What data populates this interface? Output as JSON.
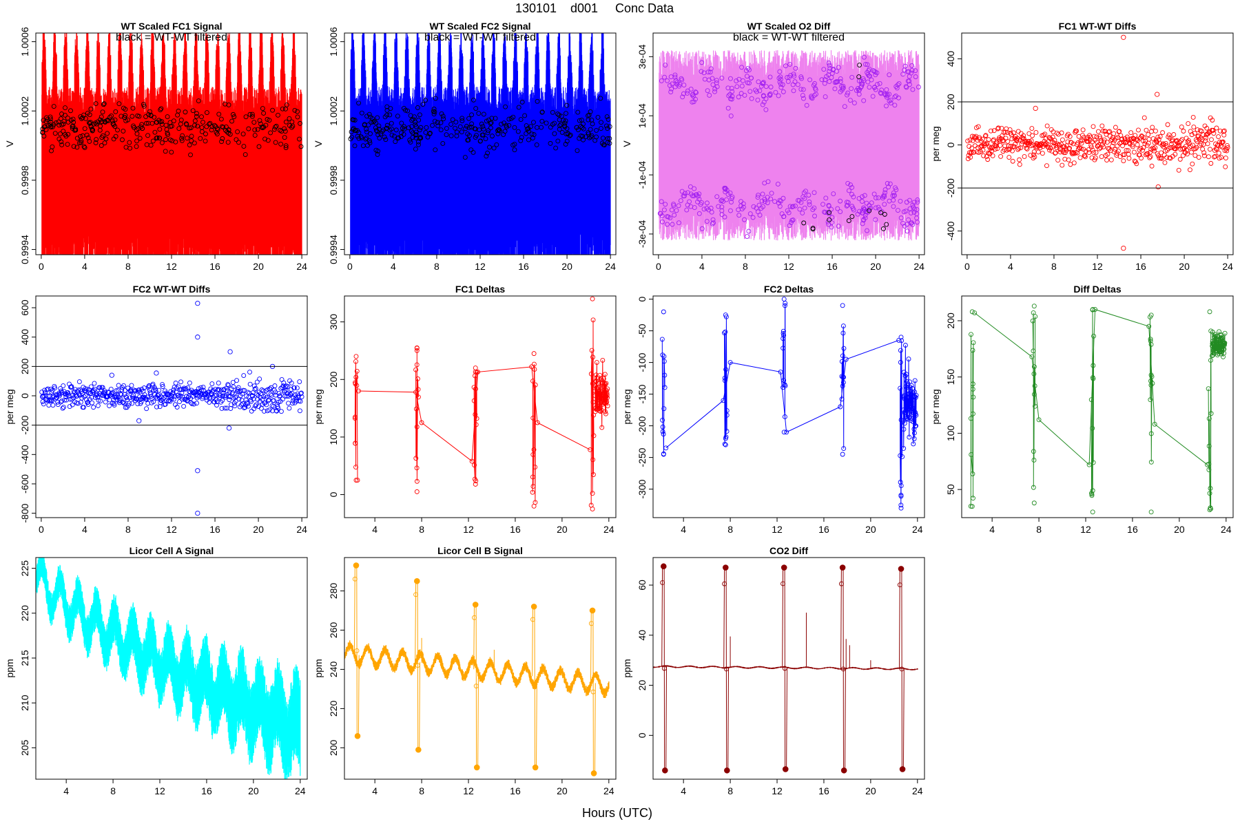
{
  "figure": {
    "title_parts": [
      "130101",
      "d001",
      "Conc Data"
    ],
    "xlabel": "Hours (UTC)"
  },
  "colors": {
    "red": "#ff0000",
    "blue": "#0000ff",
    "violet_line": "#ee82ee",
    "violet_pts": "#a020f0",
    "green": "#228b22",
    "cyan": "#00ffff",
    "orange": "#ffa500",
    "darkred": "#8b0000",
    "black": "#000000"
  },
  "chart_data": [
    {
      "id": "fc1sig",
      "type": "line",
      "title": "WT Scaled FC1 Signal",
      "subtitle": "black = WT-WT filtered",
      "xlabel": "Hours (UTC)",
      "ylabel": "V",
      "xlim": [
        -0.5,
        24.5
      ],
      "ylim": [
        0.99937,
        1.00065
      ],
      "xticks": [
        0,
        4,
        8,
        12,
        16,
        20,
        24
      ],
      "yticks": [
        0.9994,
        0.9998,
        1.0002,
        1.0006
      ],
      "yticklabels": [
        "0.9994",
        "0.9998",
        "1.0002",
        "1.0006"
      ],
      "ytick_rotate": true,
      "color": "red",
      "pts_color": "black",
      "series_shape": {
        "kind": "dense_band",
        "center": 0.99995,
        "half_width": 0.0006,
        "n_peaks": 24,
        "pts_center": 1.0001,
        "pts_spread": 0.00016
      }
    },
    {
      "id": "fc2sig",
      "type": "line",
      "title": "WT Scaled FC2 Signal",
      "subtitle": "black = WT-WT filtered",
      "xlabel": "Hours (UTC)",
      "ylabel": "V",
      "xlim": [
        -0.5,
        24.5
      ],
      "ylim": [
        0.99937,
        1.00065
      ],
      "xticks": [
        0,
        4,
        8,
        12,
        16,
        20,
        24
      ],
      "yticks": [
        0.9994,
        0.9998,
        1.0002,
        1.0006
      ],
      "yticklabels": [
        "0.9994",
        "0.9998",
        "1.0002",
        "1.0006"
      ],
      "ytick_rotate": true,
      "color": "blue",
      "pts_color": "black",
      "series_shape": {
        "kind": "dense_band",
        "center": 0.99995,
        "half_width": 0.0006,
        "n_peaks": 24,
        "pts_center": 1.0001,
        "pts_spread": 0.00016
      }
    },
    {
      "id": "o2diff",
      "type": "line",
      "title": "WT Scaled O2 Diff",
      "subtitle": "black = WT-WT filtered",
      "xlabel": "Hours (UTC)",
      "ylabel": "V",
      "xlim": [
        -0.5,
        24.5
      ],
      "ylim": [
        -0.00037,
        0.00038
      ],
      "xticks": [
        0,
        4,
        8,
        12,
        16,
        20,
        24
      ],
      "yticks": [
        -0.0003,
        -0.0001,
        0.0001,
        0.0003
      ],
      "yticklabels": [
        "-3e-04",
        "-1e-04",
        "1e-04",
        "3e-04"
      ],
      "ytick_rotate": true,
      "color": "violet_line",
      "pts_color": "violet_pts",
      "series_shape": {
        "kind": "bimodal_band",
        "band_half_width": 0.00028,
        "pts_level": 0.0002,
        "pts_spread": 8e-05
      }
    },
    {
      "id": "fc1wt",
      "type": "scatter",
      "title": "FC1 WT-WT Diffs",
      "xlabel": "Hours (UTC)",
      "ylabel": "per meg",
      "xlim": [
        -0.5,
        24.5
      ],
      "ylim": [
        -510,
        520
      ],
      "xticks": [
        0,
        4,
        8,
        12,
        16,
        20,
        24
      ],
      "yticks": [
        -400,
        -200,
        0,
        200,
        400
      ],
      "yticklabels": [
        "-400",
        "-200",
        "0",
        "200",
        "400"
      ],
      "ytick_rotate": true,
      "color": "red",
      "hlines": [
        200,
        -200
      ],
      "outliers": [
        {
          "x": 14.4,
          "y": 500
        },
        {
          "x": 14.4,
          "y": -480
        },
        {
          "x": 17.5,
          "y": 235
        },
        {
          "x": 6.3,
          "y": 170
        },
        {
          "x": 17.6,
          "y": -195
        }
      ],
      "series_shape": {
        "kind": "noise_scatter",
        "n": 560,
        "spread": 55
      }
    },
    {
      "id": "fc2wt",
      "type": "scatter",
      "title": "FC2 WT-WT Diffs",
      "xlabel": "Hours (UTC)",
      "ylabel": "per meg",
      "xlim": [
        -0.5,
        24.5
      ],
      "ylim": [
        -830,
        680
      ],
      "xticks": [
        0,
        4,
        8,
        12,
        16,
        20,
        24
      ],
      "yticks": [
        -800,
        -600,
        -400,
        -200,
        0,
        200,
        400,
        600
      ],
      "yticklabels": [
        "-800",
        "-600",
        "-400",
        "-200",
        "0",
        "200",
        "400",
        "600"
      ],
      "ytick_rotate": true,
      "color": "blue",
      "hlines": [
        200,
        -200
      ],
      "outliers": [
        {
          "x": 14.4,
          "y": 630
        },
        {
          "x": 14.4,
          "y": 400
        },
        {
          "x": 14.4,
          "y": -510
        },
        {
          "x": 14.4,
          "y": -800
        },
        {
          "x": 17.4,
          "y": 300
        },
        {
          "x": 17.3,
          "y": -220
        },
        {
          "x": 21.3,
          "y": 200
        },
        {
          "x": 10.6,
          "y": 155
        },
        {
          "x": 6.5,
          "y": 140
        },
        {
          "x": 9.0,
          "y": -170
        }
      ],
      "series_shape": {
        "kind": "noise_scatter",
        "n": 560,
        "spread": 55
      }
    },
    {
      "id": "fc1d",
      "type": "line",
      "title": "FC1 Deltas",
      "xlabel": "Hours (UTC)",
      "ylabel": "per meg",
      "xlim": [
        1.4,
        24.6
      ],
      "ylim": [
        -40,
        345
      ],
      "xticks": [
        4,
        8,
        12,
        16,
        20,
        24
      ],
      "yticks": [
        0,
        100,
        200,
        300
      ],
      "yticklabels": [
        "0",
        "100",
        "200",
        "300"
      ],
      "ytick_rotate": true,
      "color": "red",
      "clusters": [
        {
          "x": 2.4,
          "lo": 25,
          "hi": 240,
          "n": 12
        },
        {
          "x": 7.6,
          "lo": 5,
          "hi": 255,
          "n": 12
        },
        {
          "x": 12.6,
          "lo": 18,
          "hi": 220,
          "n": 12
        },
        {
          "x": 17.6,
          "lo": -20,
          "hi": 245,
          "n": 12
        },
        {
          "x": 22.6,
          "lo": -25,
          "hi": 340,
          "n": 12
        }
      ],
      "trend": [
        [
          2.6,
          180
        ],
        [
          7.5,
          178
        ],
        [
          8.0,
          125
        ],
        [
          12.3,
          58
        ],
        [
          12.8,
          213
        ],
        [
          17.4,
          222
        ],
        [
          17.9,
          125
        ],
        [
          22.4,
          78
        ]
      ],
      "tail": {
        "x0": 22.8,
        "x1": 23.9,
        "center": 175,
        "spread": 45,
        "n": 70
      }
    },
    {
      "id": "fc2d",
      "type": "line",
      "title": "FC2 Deltas",
      "xlabel": "Hours (UTC)",
      "ylabel": "per meg",
      "xlim": [
        1.4,
        24.6
      ],
      "ylim": [
        -345,
        5
      ],
      "xticks": [
        4,
        8,
        12,
        16,
        20,
        24
      ],
      "yticks": [
        -300,
        -250,
        -200,
        -150,
        -100,
        -50,
        0
      ],
      "yticklabels": [
        "-300",
        "-250",
        "-200",
        "-150",
        "-100",
        "-50",
        "0"
      ],
      "ytick_rotate": true,
      "color": "blue",
      "clusters": [
        {
          "x": 2.3,
          "lo": -245,
          "hi": -20,
          "n": 12
        },
        {
          "x": 7.6,
          "lo": -230,
          "hi": -25,
          "n": 12
        },
        {
          "x": 12.6,
          "lo": -210,
          "hi": 0,
          "n": 12
        },
        {
          "x": 17.6,
          "lo": -245,
          "hi": -10,
          "n": 12
        },
        {
          "x": 22.6,
          "lo": -330,
          "hi": -60,
          "n": 12
        }
      ],
      "trend": [
        [
          2.5,
          -235
        ],
        [
          7.4,
          -160
        ],
        [
          8.0,
          -100
        ],
        [
          12.3,
          -115
        ],
        [
          12.8,
          -210
        ],
        [
          17.4,
          -170
        ],
        [
          17.9,
          -95
        ],
        [
          22.4,
          -65
        ]
      ],
      "tail": {
        "x0": 22.8,
        "x1": 23.9,
        "center": -165,
        "spread": 60,
        "n": 70
      }
    },
    {
      "id": "diffd",
      "type": "line",
      "title": "Diff Deltas",
      "xlabel": "Hours (UTC)",
      "ylabel": "per meg",
      "xlim": [
        1.4,
        24.6
      ],
      "ylim": [
        25,
        222
      ],
      "xticks": [
        4,
        8,
        12,
        16,
        20,
        24
      ],
      "yticks": [
        50,
        100,
        150,
        200
      ],
      "yticklabels": [
        "50",
        "100",
        "150",
        "200"
      ],
      "ytick_rotate": true,
      "color": "green",
      "clusters": [
        {
          "x": 2.3,
          "lo": 35,
          "hi": 208,
          "n": 12
        },
        {
          "x": 7.6,
          "lo": 38,
          "hi": 213,
          "n": 12
        },
        {
          "x": 12.6,
          "lo": 30,
          "hi": 210,
          "n": 12
        },
        {
          "x": 17.6,
          "lo": 30,
          "hi": 205,
          "n": 12
        },
        {
          "x": 22.6,
          "lo": 32,
          "hi": 208,
          "n": 12
        }
      ],
      "trend": [
        [
          2.5,
          207
        ],
        [
          7.4,
          168
        ],
        [
          8.0,
          112
        ],
        [
          12.3,
          72
        ],
        [
          12.8,
          210
        ],
        [
          17.4,
          195
        ],
        [
          17.9,
          108
        ],
        [
          22.4,
          72
        ]
      ],
      "tail": {
        "x0": 22.8,
        "x1": 23.9,
        "center": 178,
        "spread": 10,
        "n": 80
      }
    },
    {
      "id": "licA",
      "type": "line",
      "title": "Licor Cell A Signal",
      "xlabel": "Hours (UTC)",
      "ylabel": "ppm",
      "xlim": [
        1.4,
        24.6
      ],
      "ylim": [
        201.5,
        226.2
      ],
      "xticks": [
        4,
        8,
        12,
        16,
        20,
        24
      ],
      "yticks": [
        205,
        210,
        215,
        220,
        225
      ],
      "yticklabels": [
        "205",
        "210",
        "215",
        "220",
        "225"
      ],
      "ytick_rotate": true,
      "color": "cyan",
      "series_shape": {
        "kind": "decaying_oscillation",
        "start": 224.5,
        "end": 207.0,
        "osc_amp": 2.0,
        "noise_amp": 1.4,
        "noise_growth": 2.2,
        "period": 1.55
      }
    },
    {
      "id": "licB",
      "type": "line",
      "title": "Licor Cell B Signal",
      "xlabel": "Hours (UTC)",
      "ylabel": "ppm",
      "xlim": [
        1.4,
        24.6
      ],
      "ylim": [
        184,
        297
      ],
      "xticks": [
        4,
        8,
        12,
        16,
        20,
        24
      ],
      "yticks": [
        200,
        220,
        240,
        260,
        280
      ],
      "yticklabels": [
        "200",
        "220",
        "240",
        "260",
        "280"
      ],
      "ytick_rotate": true,
      "color": "orange",
      "series_shape": {
        "kind": "baseline_with_spikes",
        "start": 248,
        "end": 232,
        "osc_amp": 4.5,
        "noise_amp": 2.2,
        "period": 1.5
      },
      "spikes": [
        {
          "x": 2.4,
          "hi": 293,
          "lo": 206
        },
        {
          "x": 7.6,
          "hi": 285,
          "lo": 199
        },
        {
          "x": 12.6,
          "hi": 273,
          "lo": 190
        },
        {
          "x": 17.6,
          "hi": 272,
          "lo": 190
        },
        {
          "x": 22.6,
          "hi": 270,
          "lo": 187
        }
      ],
      "extra_blips": [
        {
          "x": 8.0,
          "y": 256
        },
        {
          "x": 14.2,
          "y": 250
        }
      ]
    },
    {
      "id": "co2",
      "type": "line",
      "title": "CO2 Diff",
      "xlabel": "Hours (UTC)",
      "ylabel": "ppm",
      "xlim": [
        1.4,
        24.6
      ],
      "ylim": [
        -17.5,
        71
      ],
      "xticks": [
        4,
        8,
        12,
        16,
        20,
        24
      ],
      "yticks": [
        0,
        20,
        40,
        60
      ],
      "yticklabels": [
        "0",
        "20",
        "40",
        "60"
      ],
      "ytick_rotate": true,
      "color": "darkred",
      "series_shape": {
        "kind": "baseline_with_spikes",
        "start": 27.5,
        "end": 26.5,
        "osc_amp": 0.3,
        "noise_amp": 0.25,
        "period": 2.0
      },
      "spikes": [
        {
          "x": 2.3,
          "hi": 67.5,
          "lo": -14
        },
        {
          "x": 7.6,
          "hi": 67,
          "lo": -14
        },
        {
          "x": 12.6,
          "hi": 67,
          "lo": -13.5
        },
        {
          "x": 17.6,
          "hi": 67,
          "lo": -14
        },
        {
          "x": 22.6,
          "hi": 66.5,
          "lo": -13.5
        }
      ],
      "extra_blips": [
        {
          "x": 14.5,
          "y": 49
        },
        {
          "x": 8.0,
          "y": 39.5
        },
        {
          "x": 17.9,
          "y": 38.5
        },
        {
          "x": 18.2,
          "y": 36
        },
        {
          "x": 20.0,
          "y": 30
        }
      ]
    }
  ]
}
